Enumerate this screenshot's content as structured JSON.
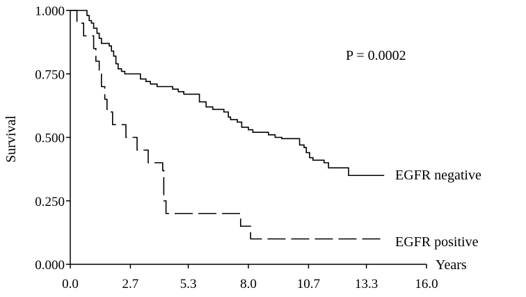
{
  "chart_data": {
    "type": "line",
    "subtype": "kaplan-meier step curve",
    "ylabel": "Survival",
    "xlabel": "Years",
    "xlim": [
      0,
      16
    ],
    "ylim": [
      0,
      1
    ],
    "x_ticks": [
      "0.0",
      "2.7",
      "5.3",
      "8.0",
      "10.7",
      "13.3",
      "16.0"
    ],
    "y_ticks": [
      "0.000",
      "0.250",
      "0.500",
      "0.750",
      "1.000"
    ],
    "grid": false,
    "annotation": "P = 0.0002",
    "series": [
      {
        "name": "EGFR negative",
        "style": "solid",
        "color": "#000000",
        "points": [
          [
            0.0,
            1.0
          ],
          [
            0.75,
            0.98
          ],
          [
            0.85,
            0.96
          ],
          [
            0.95,
            0.95
          ],
          [
            1.05,
            0.93
          ],
          [
            1.2,
            0.91
          ],
          [
            1.3,
            0.89
          ],
          [
            1.4,
            0.87
          ],
          [
            1.75,
            0.86
          ],
          [
            1.85,
            0.84
          ],
          [
            1.95,
            0.82
          ],
          [
            2.05,
            0.79
          ],
          [
            2.15,
            0.77
          ],
          [
            2.3,
            0.76
          ],
          [
            2.45,
            0.75
          ],
          [
            3.15,
            0.73
          ],
          [
            3.4,
            0.72
          ],
          [
            3.6,
            0.71
          ],
          [
            3.9,
            0.7
          ],
          [
            4.6,
            0.69
          ],
          [
            4.85,
            0.68
          ],
          [
            5.1,
            0.67
          ],
          [
            5.8,
            0.64
          ],
          [
            6.1,
            0.62
          ],
          [
            6.4,
            0.61
          ],
          [
            6.9,
            0.6
          ],
          [
            7.1,
            0.58
          ],
          [
            7.2,
            0.57
          ],
          [
            7.5,
            0.56
          ],
          [
            7.7,
            0.54
          ],
          [
            8.0,
            0.53
          ],
          [
            8.2,
            0.52
          ],
          [
            8.9,
            0.51
          ],
          [
            9.2,
            0.5
          ],
          [
            9.5,
            0.495
          ],
          [
            10.3,
            0.47
          ],
          [
            10.5,
            0.46
          ],
          [
            10.6,
            0.44
          ],
          [
            10.75,
            0.42
          ],
          [
            10.9,
            0.41
          ],
          [
            11.4,
            0.4
          ],
          [
            11.6,
            0.38
          ],
          [
            12.5,
            0.35
          ],
          [
            14.1,
            0.35
          ]
        ]
      },
      {
        "name": "EGFR positive",
        "style": "dashed",
        "color": "#000000",
        "points": [
          [
            0.0,
            1.0
          ],
          [
            0.3,
            0.95
          ],
          [
            0.6,
            0.9
          ],
          [
            1.05,
            0.85
          ],
          [
            1.15,
            0.8
          ],
          [
            1.3,
            0.75
          ],
          [
            1.4,
            0.7
          ],
          [
            1.55,
            0.65
          ],
          [
            1.65,
            0.6
          ],
          [
            1.9,
            0.55
          ],
          [
            2.5,
            0.5
          ],
          [
            3.0,
            0.45
          ],
          [
            3.5,
            0.4
          ],
          [
            4.15,
            0.37
          ],
          [
            4.2,
            0.25
          ],
          [
            4.3,
            0.2
          ],
          [
            7.65,
            0.15
          ],
          [
            8.1,
            0.1
          ],
          [
            14.1,
            0.1
          ]
        ]
      }
    ]
  }
}
